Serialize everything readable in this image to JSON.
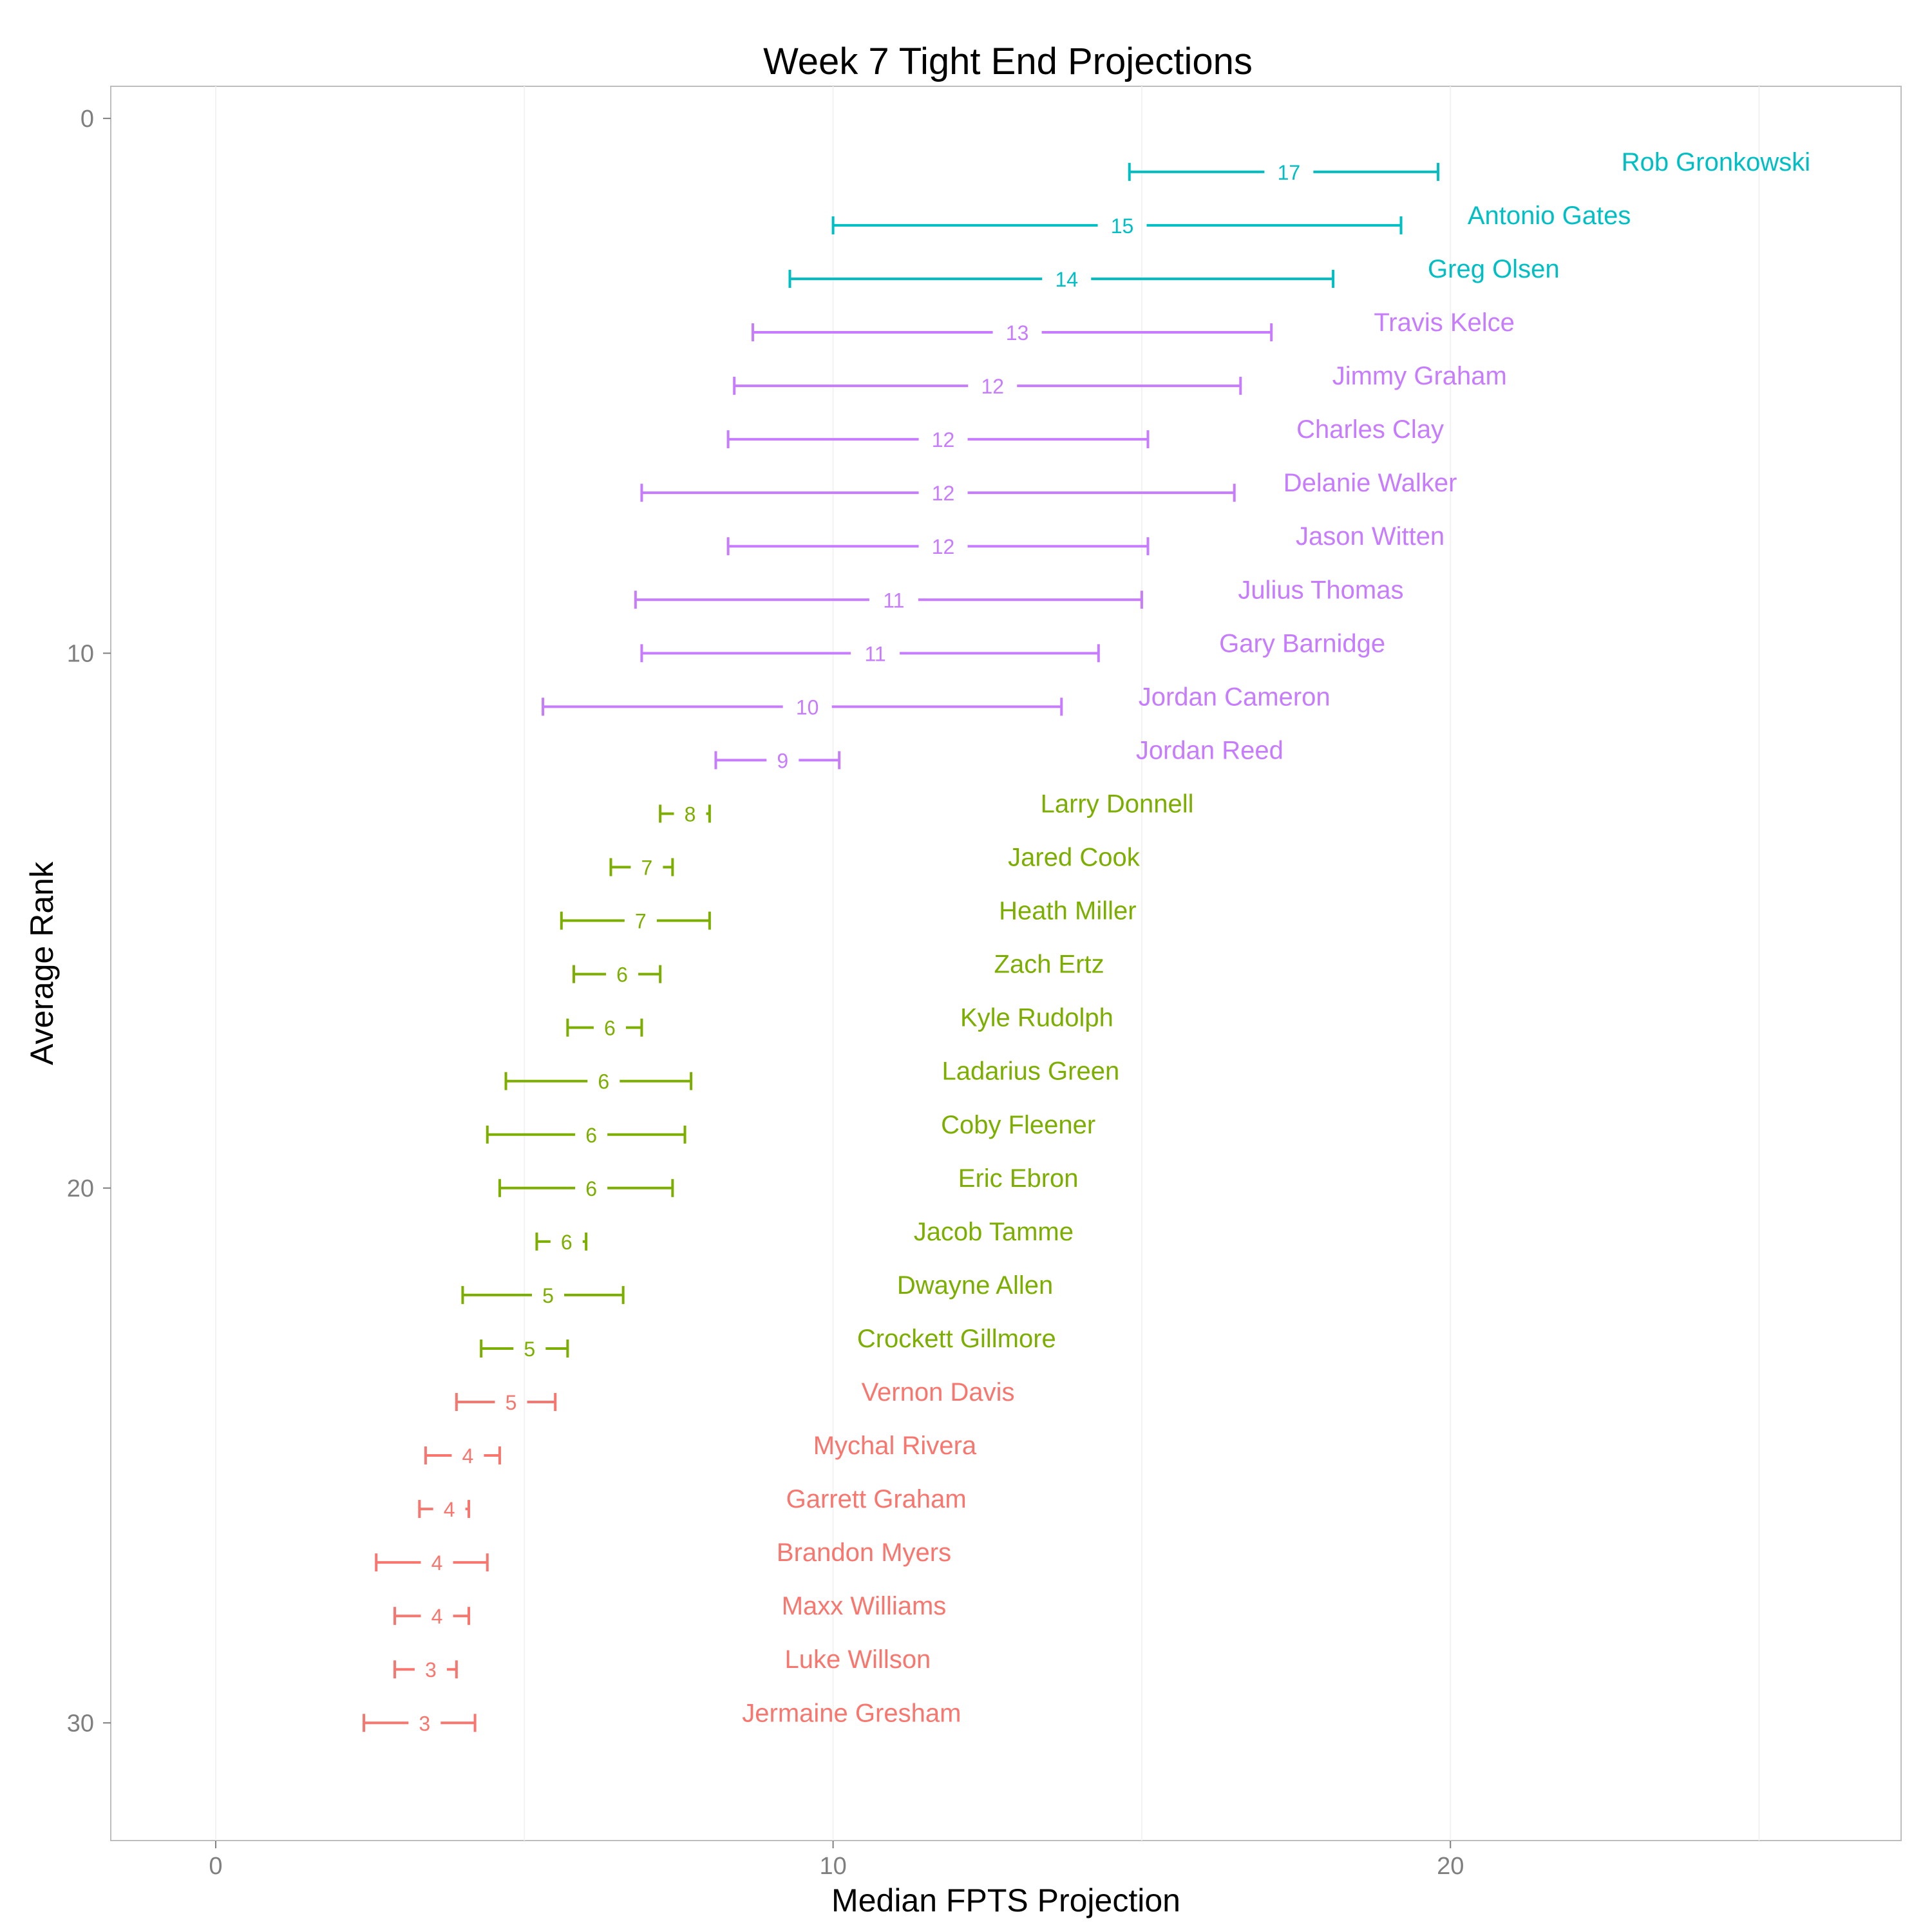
{
  "chart_data": {
    "type": "errorbar",
    "title": "Week 7 Tight End Projections",
    "xlabel": "Median FPTS Projection",
    "ylabel": "Average Rank",
    "xlim": [
      -1.7,
      27.3
    ],
    "ylim": [
      32.2,
      -0.6
    ],
    "x_ticks": [
      0,
      10,
      20
    ],
    "x_tick_labels": [
      "0",
      "10",
      "20"
    ],
    "y_ticks": [
      0,
      10,
      20,
      30
    ],
    "y_tick_labels": [
      "0",
      "10",
      "20",
      "30"
    ],
    "grid": true,
    "tier_colors": {
      "tier1": "#00BFC4",
      "tier2": "#C77CFF",
      "tier3": "#7CAE00",
      "tier4": "#F8766D"
    },
    "players": [
      {
        "name": "Rob Gronkowski",
        "rank": 1,
        "low": 14.8,
        "high": 19.8,
        "median": 17.3,
        "label": "17",
        "tier": "tier1"
      },
      {
        "name": "Antonio Gates",
        "rank": 2,
        "low": 10.0,
        "high": 19.2,
        "median": 14.6,
        "label": "15",
        "tier": "tier1"
      },
      {
        "name": "Greg Olsen",
        "rank": 3,
        "low": 9.3,
        "high": 18.1,
        "median": 13.7,
        "label": "14",
        "tier": "tier1"
      },
      {
        "name": "Travis Kelce",
        "rank": 4,
        "low": 8.7,
        "high": 17.1,
        "median": 12.9,
        "label": "13",
        "tier": "tier2"
      },
      {
        "name": "Jimmy Graham",
        "rank": 5,
        "low": 8.4,
        "high": 16.6,
        "median": 12.5,
        "label": "12",
        "tier": "tier2"
      },
      {
        "name": "Charles Clay",
        "rank": 6,
        "low": 8.3,
        "high": 15.1,
        "median": 11.7,
        "label": "12",
        "tier": "tier2"
      },
      {
        "name": "Delanie Walker",
        "rank": 7,
        "low": 6.9,
        "high": 16.5,
        "median": 11.7,
        "label": "12",
        "tier": "tier2"
      },
      {
        "name": "Jason Witten",
        "rank": 8,
        "low": 8.3,
        "high": 15.1,
        "median": 11.7,
        "label": "12",
        "tier": "tier2"
      },
      {
        "name": "Julius Thomas",
        "rank": 9,
        "low": 6.8,
        "high": 15.0,
        "median": 10.9,
        "label": "11",
        "tier": "tier2"
      },
      {
        "name": "Gary Barnidge",
        "rank": 10,
        "low": 6.9,
        "high": 14.3,
        "median": 10.6,
        "label": "11",
        "tier": "tier2"
      },
      {
        "name": "Jordan Cameron",
        "rank": 11,
        "low": 5.3,
        "high": 13.7,
        "median": 9.5,
        "label": "10",
        "tier": "tier2"
      },
      {
        "name": "Jordan Reed",
        "rank": 12,
        "low": 8.1,
        "high": 10.1,
        "median": 9.1,
        "label": "9",
        "tier": "tier2"
      },
      {
        "name": "Larry Donnell",
        "rank": 13,
        "low": 7.2,
        "high": 8.0,
        "median": 7.6,
        "label": "8",
        "tier": "tier3"
      },
      {
        "name": "Jared Cook",
        "rank": 14,
        "low": 6.4,
        "high": 7.4,
        "median": 6.9,
        "label": "7",
        "tier": "tier3"
      },
      {
        "name": "Heath Miller",
        "rank": 15,
        "low": 5.6,
        "high": 8.0,
        "median": 6.8,
        "label": "7",
        "tier": "tier3"
      },
      {
        "name": "Zach Ertz",
        "rank": 16,
        "low": 5.8,
        "high": 7.2,
        "median": 6.5,
        "label": "6",
        "tier": "tier3"
      },
      {
        "name": "Kyle Rudolph",
        "rank": 17,
        "low": 5.7,
        "high": 6.9,
        "median": 6.3,
        "label": "6",
        "tier": "tier3"
      },
      {
        "name": "Ladarius Green",
        "rank": 18,
        "low": 4.7,
        "high": 7.7,
        "median": 6.2,
        "label": "6",
        "tier": "tier3"
      },
      {
        "name": "Coby Fleener",
        "rank": 19,
        "low": 4.4,
        "high": 7.6,
        "median": 6.0,
        "label": "6",
        "tier": "tier3"
      },
      {
        "name": "Eric Ebron",
        "rank": 20,
        "low": 4.6,
        "high": 7.4,
        "median": 6.0,
        "label": "6",
        "tier": "tier3"
      },
      {
        "name": "Jacob Tamme",
        "rank": 21,
        "low": 5.2,
        "high": 6.0,
        "median": 5.6,
        "label": "6",
        "tier": "tier3"
      },
      {
        "name": "Dwayne Allen",
        "rank": 22,
        "low": 4.0,
        "high": 6.6,
        "median": 5.3,
        "label": "5",
        "tier": "tier3"
      },
      {
        "name": "Crockett Gillmore",
        "rank": 23,
        "low": 4.3,
        "high": 5.7,
        "median": 5.0,
        "label": "5",
        "tier": "tier3"
      },
      {
        "name": "Vernon Davis",
        "rank": 24,
        "low": 3.9,
        "high": 5.5,
        "median": 4.7,
        "label": "5",
        "tier": "tier4"
      },
      {
        "name": "Mychal Rivera",
        "rank": 25,
        "low": 3.4,
        "high": 4.6,
        "median": 4.0,
        "label": "4",
        "tier": "tier4"
      },
      {
        "name": "Garrett Graham",
        "rank": 26,
        "low": 3.3,
        "high": 4.1,
        "median": 3.7,
        "label": "4",
        "tier": "tier4"
      },
      {
        "name": "Brandon Myers",
        "rank": 27,
        "low": 2.6,
        "high": 4.4,
        "median": 3.5,
        "label": "4",
        "tier": "tier4"
      },
      {
        "name": "Maxx Williams",
        "rank": 28,
        "low": 2.9,
        "high": 4.1,
        "median": 3.5,
        "label": "4",
        "tier": "tier4"
      },
      {
        "name": "Luke Willson",
        "rank": 29,
        "low": 2.9,
        "high": 3.9,
        "median": 3.4,
        "label": "3",
        "tier": "tier4"
      },
      {
        "name": "Jermaine Gresham",
        "rank": 30,
        "low": 2.4,
        "high": 4.2,
        "median": 3.3,
        "label": "3",
        "tier": "tier4"
      }
    ]
  }
}
